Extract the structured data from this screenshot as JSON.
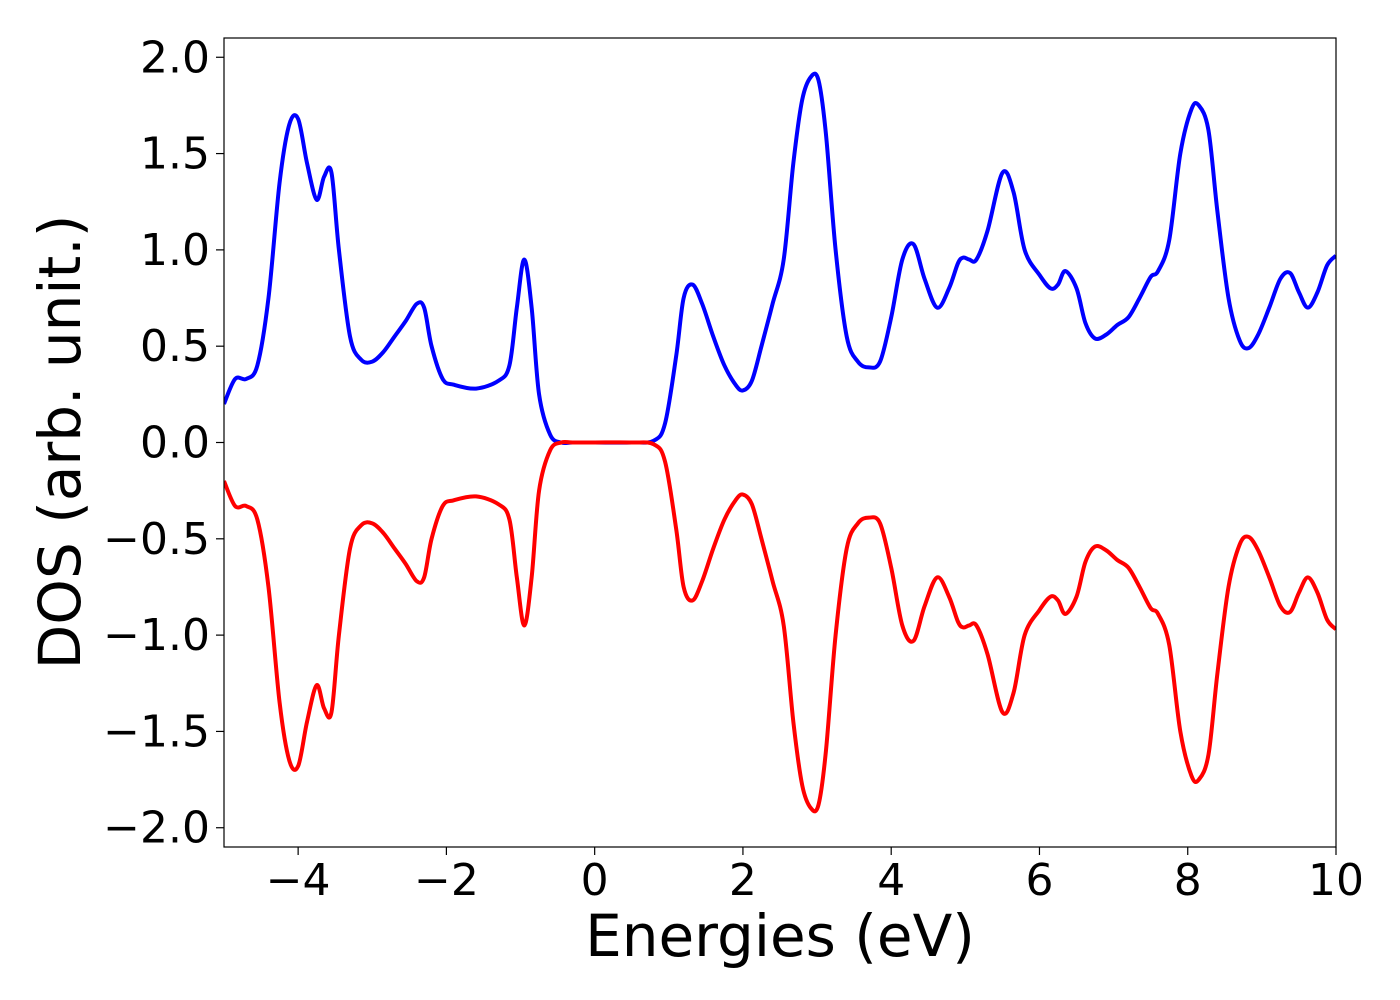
{
  "chart_data": {
    "type": "line",
    "title": "",
    "xlabel": "Energies (eV)",
    "ylabel": "DOS (arb. unit.)",
    "xlim": [
      -5,
      10
    ],
    "ylim": [
      -2.1,
      2.1
    ],
    "xticks": [
      -4,
      -2,
      0,
      2,
      4,
      6,
      8,
      10
    ],
    "xtick_labels": [
      "−4",
      "−2",
      "0",
      "2",
      "4",
      "6",
      "8",
      "10"
    ],
    "yticks": [
      2.0,
      1.5,
      1.0,
      0.5,
      0.0,
      -0.5,
      -1.0,
      -1.5,
      -2.0
    ],
    "ytick_labels": [
      "2.0",
      "1.5",
      "1.0",
      "0.5",
      "0.0",
      "−0.5",
      "−1.0",
      "−1.5",
      "−2.0"
    ],
    "grid": false,
    "legend": "none",
    "series": [
      {
        "color": "#0000ff",
        "x": [
          -5.0,
          -4.85,
          -4.7,
          -4.55,
          -4.4,
          -4.25,
          -4.12,
          -4.0,
          -3.88,
          -3.75,
          -3.65,
          -3.55,
          -3.45,
          -3.3,
          -3.15,
          -3.0,
          -2.85,
          -2.7,
          -2.55,
          -2.4,
          -2.3,
          -2.2,
          -2.05,
          -1.9,
          -1.6,
          -1.3,
          -1.15,
          -1.05,
          -0.95,
          -0.85,
          -0.75,
          -0.6,
          -0.45,
          -0.3,
          0.0,
          0.5,
          0.8,
          0.95,
          1.1,
          1.2,
          1.32,
          1.45,
          1.6,
          1.75,
          1.9,
          2.0,
          2.12,
          2.25,
          2.4,
          2.55,
          2.68,
          2.8,
          2.92,
          3.02,
          3.12,
          3.25,
          3.4,
          3.55,
          3.7,
          3.85,
          4.0,
          4.15,
          4.3,
          4.45,
          4.62,
          4.78,
          4.9,
          4.97,
          5.05,
          5.15,
          5.3,
          5.5,
          5.65,
          5.8,
          6.0,
          6.15,
          6.25,
          6.35,
          6.5,
          6.62,
          6.75,
          6.9,
          7.05,
          7.2,
          7.35,
          7.5,
          7.6,
          7.75,
          7.9,
          8.05,
          8.15,
          8.28,
          8.4,
          8.55,
          8.7,
          8.82,
          8.95,
          9.1,
          9.25,
          9.38,
          9.5,
          9.62,
          9.75,
          9.88,
          10.0
        ],
        "y": [
          0.2,
          0.33,
          0.33,
          0.4,
          0.75,
          1.35,
          1.65,
          1.68,
          1.45,
          1.26,
          1.38,
          1.4,
          1.0,
          0.55,
          0.43,
          0.42,
          0.47,
          0.55,
          0.63,
          0.72,
          0.7,
          0.5,
          0.33,
          0.3,
          0.28,
          0.32,
          0.4,
          0.7,
          0.95,
          0.7,
          0.25,
          0.04,
          0.0,
          0.0,
          0.0,
          0.0,
          0.01,
          0.1,
          0.45,
          0.75,
          0.82,
          0.72,
          0.55,
          0.4,
          0.3,
          0.27,
          0.32,
          0.5,
          0.72,
          0.95,
          1.45,
          1.78,
          1.9,
          1.88,
          1.6,
          1.0,
          0.55,
          0.42,
          0.39,
          0.42,
          0.65,
          0.95,
          1.03,
          0.85,
          0.7,
          0.8,
          0.93,
          0.96,
          0.95,
          0.95,
          1.1,
          1.4,
          1.3,
          1.0,
          0.87,
          0.8,
          0.82,
          0.89,
          0.8,
          0.62,
          0.54,
          0.56,
          0.61,
          0.65,
          0.75,
          0.86,
          0.89,
          1.05,
          1.5,
          1.73,
          1.75,
          1.62,
          1.2,
          0.75,
          0.53,
          0.49,
          0.56,
          0.7,
          0.85,
          0.88,
          0.78,
          0.7,
          0.78,
          0.92,
          0.97
        ]
      },
      {
        "color": "#ff0000",
        "x": [
          -5.0,
          -4.85,
          -4.7,
          -4.55,
          -4.4,
          -4.25,
          -4.12,
          -4.0,
          -3.88,
          -3.75,
          -3.65,
          -3.55,
          -3.45,
          -3.3,
          -3.15,
          -3.0,
          -2.85,
          -2.7,
          -2.55,
          -2.4,
          -2.3,
          -2.2,
          -2.05,
          -1.9,
          -1.6,
          -1.3,
          -1.15,
          -1.05,
          -0.95,
          -0.85,
          -0.75,
          -0.6,
          -0.45,
          -0.3,
          0.0,
          0.5,
          0.8,
          0.95,
          1.1,
          1.2,
          1.32,
          1.45,
          1.6,
          1.75,
          1.9,
          2.0,
          2.12,
          2.25,
          2.4,
          2.55,
          2.68,
          2.8,
          2.92,
          3.02,
          3.12,
          3.25,
          3.4,
          3.55,
          3.7,
          3.85,
          4.0,
          4.15,
          4.3,
          4.45,
          4.62,
          4.78,
          4.9,
          4.97,
          5.05,
          5.15,
          5.3,
          5.5,
          5.65,
          5.8,
          6.0,
          6.15,
          6.25,
          6.35,
          6.5,
          6.62,
          6.75,
          6.9,
          7.05,
          7.2,
          7.35,
          7.5,
          7.6,
          7.75,
          7.9,
          8.05,
          8.15,
          8.28,
          8.4,
          8.55,
          8.7,
          8.82,
          8.95,
          9.1,
          9.25,
          9.38,
          9.5,
          9.62,
          9.75,
          9.88,
          10.0
        ],
        "y": [
          -0.2,
          -0.33,
          -0.33,
          -0.4,
          -0.75,
          -1.35,
          -1.65,
          -1.68,
          -1.45,
          -1.26,
          -1.38,
          -1.4,
          -1.0,
          -0.55,
          -0.43,
          -0.42,
          -0.47,
          -0.55,
          -0.63,
          -0.72,
          -0.7,
          -0.5,
          -0.33,
          -0.3,
          -0.28,
          -0.32,
          -0.4,
          -0.7,
          -0.95,
          -0.7,
          -0.25,
          -0.04,
          0.0,
          0.0,
          0.0,
          0.0,
          -0.01,
          -0.1,
          -0.45,
          -0.75,
          -0.82,
          -0.72,
          -0.55,
          -0.4,
          -0.3,
          -0.27,
          -0.32,
          -0.5,
          -0.72,
          -0.95,
          -1.45,
          -1.78,
          -1.9,
          -1.88,
          -1.6,
          -1.0,
          -0.55,
          -0.42,
          -0.39,
          -0.42,
          -0.65,
          -0.95,
          -1.03,
          -0.85,
          -0.7,
          -0.8,
          -0.93,
          -0.96,
          -0.95,
          -0.95,
          -1.1,
          -1.4,
          -1.3,
          -1.0,
          -0.87,
          -0.8,
          -0.82,
          -0.89,
          -0.8,
          -0.62,
          -0.54,
          -0.56,
          -0.61,
          -0.65,
          -0.75,
          -0.86,
          -0.89,
          -1.05,
          -1.5,
          -1.73,
          -1.75,
          -1.62,
          -1.2,
          -0.75,
          -0.53,
          -0.49,
          -0.56,
          -0.7,
          -0.85,
          -0.88,
          -0.78,
          -0.7,
          -0.78,
          -0.92,
          -0.97
        ]
      }
    ]
  }
}
